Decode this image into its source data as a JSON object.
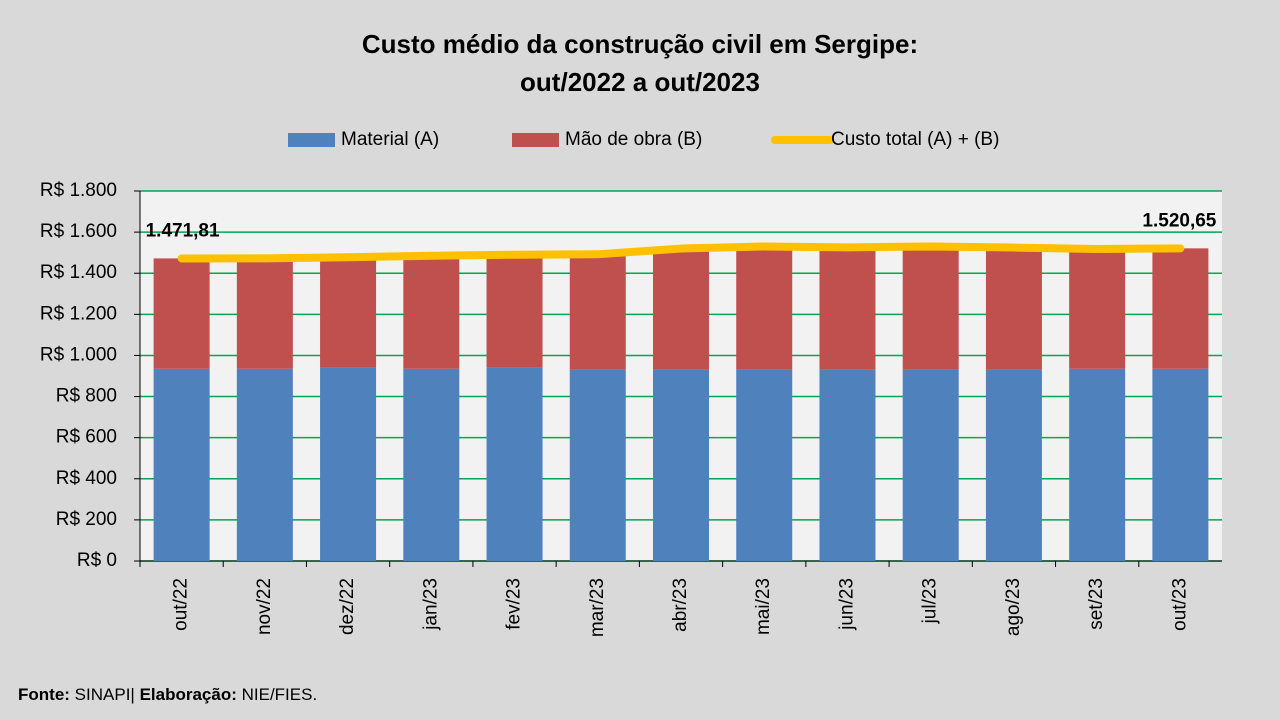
{
  "chart_data": {
    "type": "bar",
    "stacked": true,
    "title": [
      "Custo médio da construção civil em Sergipe:",
      "out/2022 a out/2023"
    ],
    "categories": [
      "out/22",
      "nov/22",
      "dez/22",
      "jan/23",
      "fev/23",
      "mar/23",
      "abr/23",
      "mai/23",
      "jun/23",
      "jul/23",
      "ago/23",
      "set/23",
      "out/23"
    ],
    "series": [
      {
        "name": "Material (A)",
        "color": "#4f81bd",
        "values": [
          935,
          935,
          940,
          935,
          940,
          930,
          930,
          930,
          930,
          930,
          930,
          935,
          935
        ]
      },
      {
        "name": "Mão de obra (B)",
        "color": "#c0504d",
        "values": [
          537,
          537,
          538,
          550,
          550,
          562,
          590,
          600,
          596,
          600,
          595,
          583,
          586
        ]
      },
      {
        "name": "Custo total (A) + (B)",
        "color": "#ffc000",
        "type": "line",
        "values": [
          1471.81,
          1472,
          1478,
          1485,
          1490,
          1492,
          1520,
          1530,
          1526,
          1530,
          1525,
          1518,
          1520.65
        ],
        "value_labels": [
          "1.471,81",
          null,
          null,
          null,
          null,
          null,
          null,
          null,
          null,
          null,
          null,
          null,
          "1.520,65"
        ]
      }
    ],
    "ylim": [
      0,
      1800
    ],
    "yticks": [
      {
        "value": 0,
        "label": "R$ 0"
      },
      {
        "value": 200,
        "label": "R$ 200"
      },
      {
        "value": 400,
        "label": "R$ 400"
      },
      {
        "value": 600,
        "label": "R$ 600"
      },
      {
        "value": 800,
        "label": "R$ 800"
      },
      {
        "value": 1000,
        "label": "R$ 1.000"
      },
      {
        "value": 1200,
        "label": "R$ 1.200"
      },
      {
        "value": 1400,
        "label": "R$ 1.400"
      },
      {
        "value": 1600,
        "label": "R$ 1.600"
      },
      {
        "value": 1800,
        "label": "R$ 1.800"
      }
    ],
    "grid": true,
    "grid_color": "#00a650",
    "legend": "top",
    "source_label": "Fonte:",
    "source": "SINAPI|",
    "credit_label": "Elaboração:",
    "credit": "NIE/FIES."
  }
}
